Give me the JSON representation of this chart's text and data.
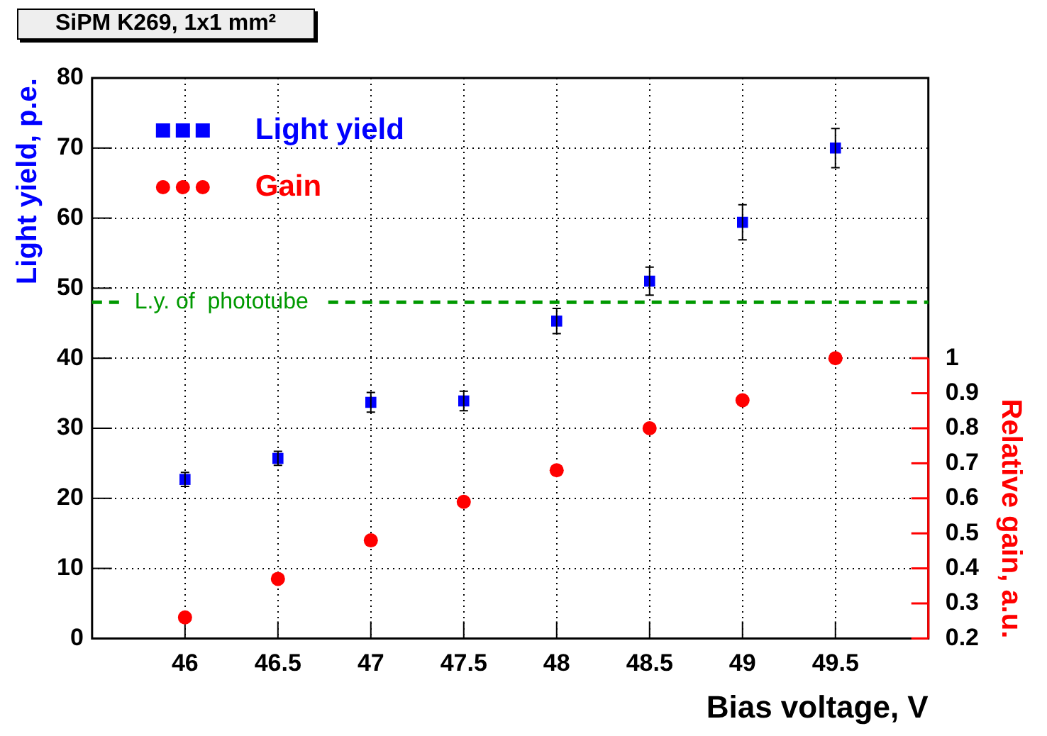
{
  "chart_data": {
    "type": "scatter",
    "title": "SiPM K269, 1x1 mm²",
    "xlabel": "Bias voltage, V",
    "ylabel": "Light yield, p.e.",
    "y2label": "Relative gain, a.u.",
    "x": [
      46,
      46.5,
      47,
      47.5,
      48,
      48.5,
      49,
      49.5
    ],
    "series": [
      {
        "name": "Light yield",
        "color": "#0000ff",
        "marker": "square",
        "values": [
          22.7,
          25.7,
          33.7,
          33.9,
          45.3,
          51.0,
          59.4,
          70.0
        ],
        "errors": [
          1,
          1,
          1.4,
          1.4,
          1.8,
          2,
          2.5,
          2.8
        ]
      },
      {
        "name": "Gain",
        "color": "#ff0000",
        "marker": "circle",
        "axis": "y2",
        "values": [
          0.26,
          0.37,
          0.48,
          0.59,
          0.68,
          0.8,
          0.88,
          1.0
        ]
      }
    ],
    "xlim": [
      45.5,
      50
    ],
    "xticks": [
      46,
      46.5,
      47,
      47.5,
      48,
      48.5,
      49,
      49.5
    ],
    "ylim": [
      0,
      80
    ],
    "yticks": [
      0,
      10,
      20,
      30,
      40,
      50,
      60,
      70,
      80
    ],
    "y2lim": [
      0.2,
      1.8
    ],
    "y2ticks": [
      0.2,
      0.3,
      0.4,
      0.5,
      0.6,
      0.7,
      0.8,
      0.9,
      1
    ],
    "ref_lines": [
      {
        "axis": "y",
        "value": 48,
        "label": "L.y. of  phototube",
        "color": "#009900",
        "line_style": "dashed"
      }
    ],
    "grid": true,
    "legend": "top left"
  }
}
